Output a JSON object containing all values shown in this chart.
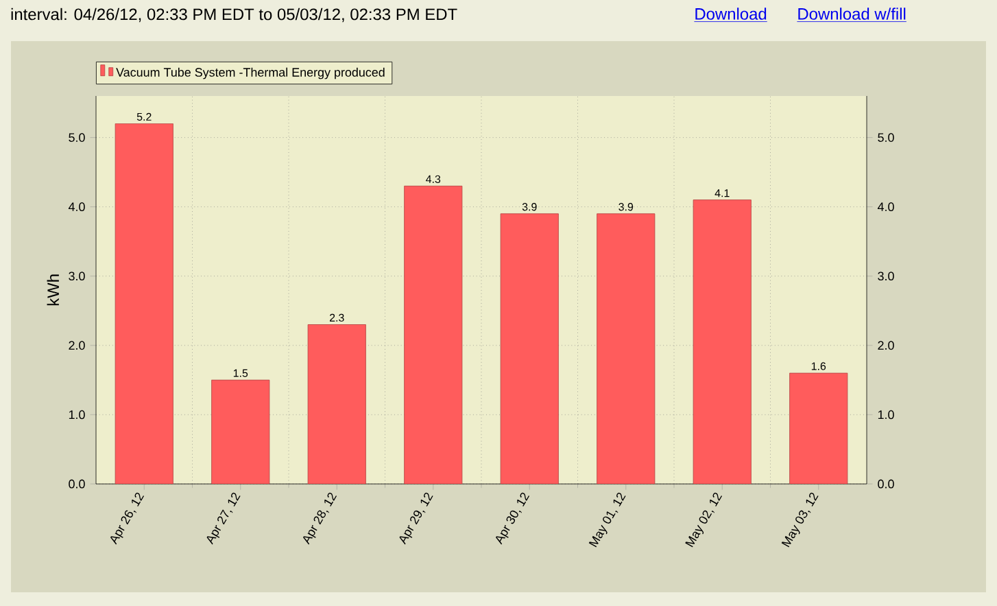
{
  "chart_data": {
    "type": "bar",
    "title": "interval: 04/26/12, 02:33 PM EDT to 05/03/12, 02:33 PM EDT",
    "annotations": [
      "Download",
      "Download w/fill"
    ],
    "ylabel": "kWh",
    "categories": [
      "Apr 26, 12",
      "Apr 27, 12",
      "Apr 28, 12",
      "Apr 29, 12",
      "Apr 30, 12",
      "May 01, 12",
      "May 02, 12",
      "May 03, 12"
    ],
    "series": [
      {
        "name": "Vacuum Tube System -Thermal Energy produced",
        "color": "#ff5c5c",
        "values": [
          5.2,
          1.5,
          2.3,
          4.3,
          3.9,
          3.9,
          4.1,
          1.6
        ]
      }
    ],
    "data_labels": true,
    "ylim": [
      0,
      5.6
    ],
    "yticks": [
      {
        "value": 0,
        "label": "0.0"
      },
      {
        "value": 1,
        "label": "1.0"
      },
      {
        "value": 2,
        "label": "2.0"
      },
      {
        "value": 3,
        "label": "3.0"
      },
      {
        "value": 4,
        "label": "4.0"
      },
      {
        "value": 5,
        "label": "5.0"
      }
    ],
    "y2lim": [
      0,
      5.6
    ],
    "y2ticks": [
      {
        "value": 0,
        "label": "0.0"
      },
      {
        "value": 1,
        "label": "1.0"
      },
      {
        "value": 2,
        "label": "2.0"
      },
      {
        "value": 3,
        "label": "3.0"
      },
      {
        "value": 4,
        "label": "4.0"
      },
      {
        "value": 5,
        "label": "5.0"
      }
    ],
    "grid": true,
    "legend": "top left"
  }
}
